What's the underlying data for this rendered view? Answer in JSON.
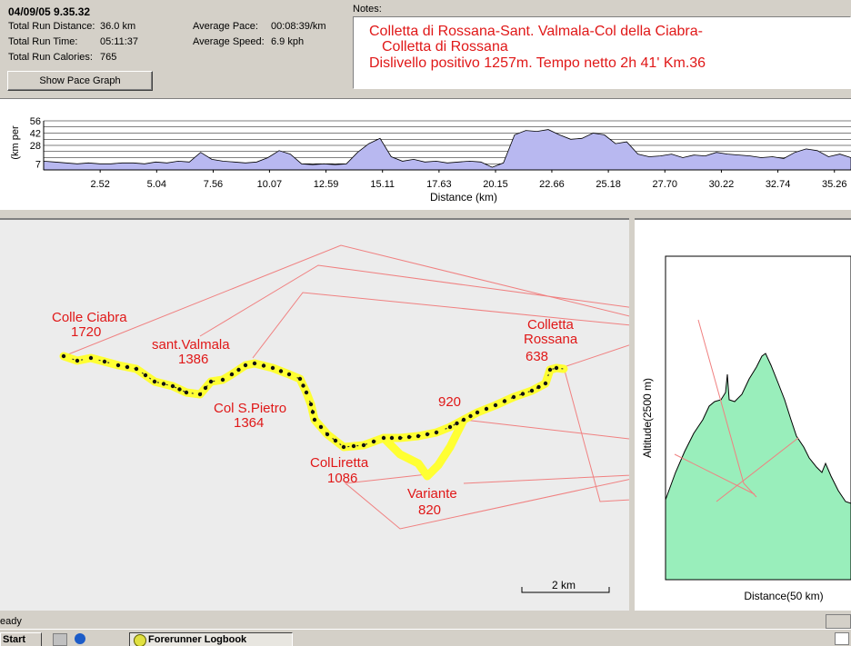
{
  "run": {
    "date_time": "04/09/05  9.35.32",
    "distance_label": "Total Run Distance:",
    "distance": "36.0 km",
    "time_label": "Total Run Time:",
    "time": "05:11:37",
    "calories_label": "Total Run Calories:",
    "calories": "765",
    "pace_label": "Average Pace:",
    "pace": "00:08:39/km",
    "speed_label": "Average Speed:",
    "speed": "6.9 kph"
  },
  "show_pace_button": "Show Pace Graph",
  "notes": {
    "label": "Notes:",
    "lines": [
      "Colletta di Rossana-Sant. Valmala-Col della Ciabra-",
      "Colletta di Rossana",
      "Dislivello positivo 1257m. Tempo netto 2h 41'  Km.36"
    ]
  },
  "chart_data": {
    "type": "area",
    "xlabel": "Distance (km)",
    "ylabel": "(km per",
    "x_ticks": [
      "2.52",
      "5.04",
      "7.56",
      "10.07",
      "12.59",
      "15.11",
      "17.63",
      "20.15",
      "22.66",
      "25.18",
      "27.70",
      "30.22",
      "32.74",
      "35.26"
    ],
    "y_ticks": [
      "56",
      "42",
      "28",
      "7"
    ],
    "xlim": [
      0,
      36.0
    ],
    "ylim": [
      0,
      56
    ],
    "x": [
      0,
      0.5,
      1,
      1.5,
      2,
      2.5,
      3,
      3.5,
      4,
      4.5,
      5,
      5.5,
      6,
      6.5,
      7,
      7.5,
      8,
      8.5,
      9,
      9.5,
      10,
      10.5,
      11,
      11.5,
      12,
      12.5,
      13,
      13.5,
      14,
      14.5,
      15,
      15.5,
      16,
      16.5,
      17,
      17.5,
      18,
      18.5,
      19,
      19.5,
      20,
      20.5,
      21,
      21.5,
      22,
      22.5,
      23,
      23.5,
      24,
      24.5,
      25,
      25.5,
      26,
      26.5,
      27,
      27.5,
      28,
      28.5,
      29,
      29.5,
      30,
      30.5,
      31,
      31.5,
      32,
      32.5,
      33,
      33.5,
      34,
      34.5,
      35,
      35.5,
      36
    ],
    "y": [
      10,
      9,
      8,
      7,
      8,
      7,
      7,
      8,
      8,
      7,
      9,
      8,
      10,
      9,
      20,
      12,
      10,
      9,
      8,
      9,
      14,
      22,
      18,
      7,
      6,
      7,
      6,
      7,
      20,
      30,
      36,
      15,
      10,
      12,
      9,
      10,
      8,
      9,
      10,
      9,
      3,
      8,
      40,
      45,
      44,
      46,
      40,
      35,
      36,
      42,
      40,
      30,
      32,
      18,
      15,
      16,
      18,
      14,
      17,
      16,
      20,
      18,
      17,
      16,
      14,
      15,
      13,
      20,
      24,
      22,
      15,
      18,
      14
    ],
    "color": "#b8b8f0"
  },
  "map": {
    "markers": [
      {
        "name": "Colle Ciabra",
        "elev": "1720"
      },
      {
        "name": "sant.Valmala",
        "elev": "1386"
      },
      {
        "name": "Col S.Pietro",
        "elev": "1364"
      },
      {
        "name": "ColLiretta",
        "elev": "1086"
      },
      {
        "name": "Variante",
        "elev": "820"
      },
      {
        "name": "920",
        "elev": ""
      },
      {
        "name": "Colletta",
        "elev": "Rossana"
      },
      {
        "name": "638",
        "elev": ""
      }
    ],
    "scale_label": "2 km",
    "label_color": "#e01818",
    "track_color": "#ffff33"
  },
  "altitude": {
    "ylabel": "Altitude(2500 m)",
    "xlabel": "Distance(50 km)",
    "fill_color": "#99eebb"
  },
  "status": {
    "text": "eady"
  },
  "taskbar": {
    "start": "Start",
    "task": "Forerunner Logbook"
  }
}
